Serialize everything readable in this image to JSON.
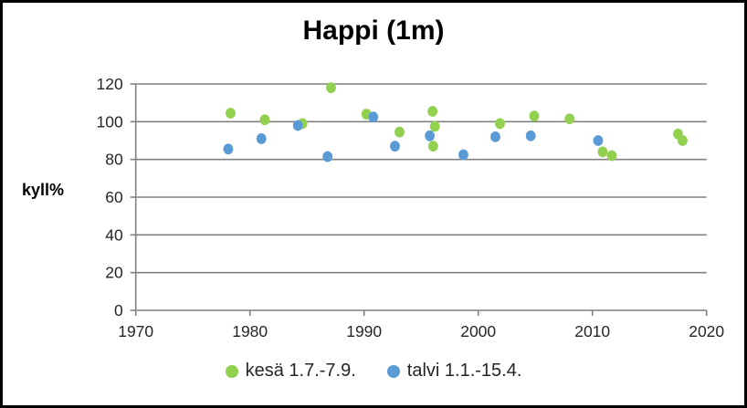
{
  "chart_data": {
    "type": "scatter",
    "title": "Happi (1m)",
    "xlabel": "",
    "ylabel": "kyll%",
    "xlim": [
      1970,
      2020
    ],
    "ylim": [
      0,
      120
    ],
    "x_ticks": [
      1970,
      1980,
      1990,
      2000,
      2010,
      2020
    ],
    "y_ticks": [
      0,
      20,
      40,
      60,
      80,
      100,
      120
    ],
    "grid": "horizontal gridlines on, gray",
    "legend_position": "bottom-center",
    "axis_color": "#808080",
    "text_color": "#262626",
    "series": [
      {
        "id": "kesa",
        "name": "kesä 1.7.-7.9.",
        "color": "#92d050",
        "points": [
          [
            1978.3,
            104.5
          ],
          [
            1981.3,
            101
          ],
          [
            1984.6,
            99
          ],
          [
            1987.1,
            118
          ],
          [
            1990.2,
            104
          ],
          [
            1993.1,
            94.5
          ],
          [
            1996.0,
            105.5
          ],
          [
            1996.2,
            97.5
          ],
          [
            1996.05,
            87
          ],
          [
            2001.9,
            99
          ],
          [
            2004.9,
            103
          ],
          [
            2008.0,
            101.5
          ],
          [
            2010.9,
            84
          ],
          [
            2011.7,
            82
          ],
          [
            2017.5,
            93.5
          ],
          [
            2017.9,
            90
          ]
        ]
      },
      {
        "id": "talvi",
        "name": "talvi 1.1.-15.4.",
        "color": "#5b9bd5",
        "points": [
          [
            1978.1,
            85.5
          ],
          [
            1981.0,
            91
          ],
          [
            1984.2,
            98
          ],
          [
            1986.8,
            81.5
          ],
          [
            1990.8,
            102.5
          ],
          [
            1992.7,
            87
          ],
          [
            1995.75,
            92.5
          ],
          [
            1998.7,
            82.5
          ],
          [
            2001.5,
            92
          ],
          [
            2004.6,
            92.5
          ],
          [
            2010.5,
            90
          ]
        ]
      }
    ]
  }
}
